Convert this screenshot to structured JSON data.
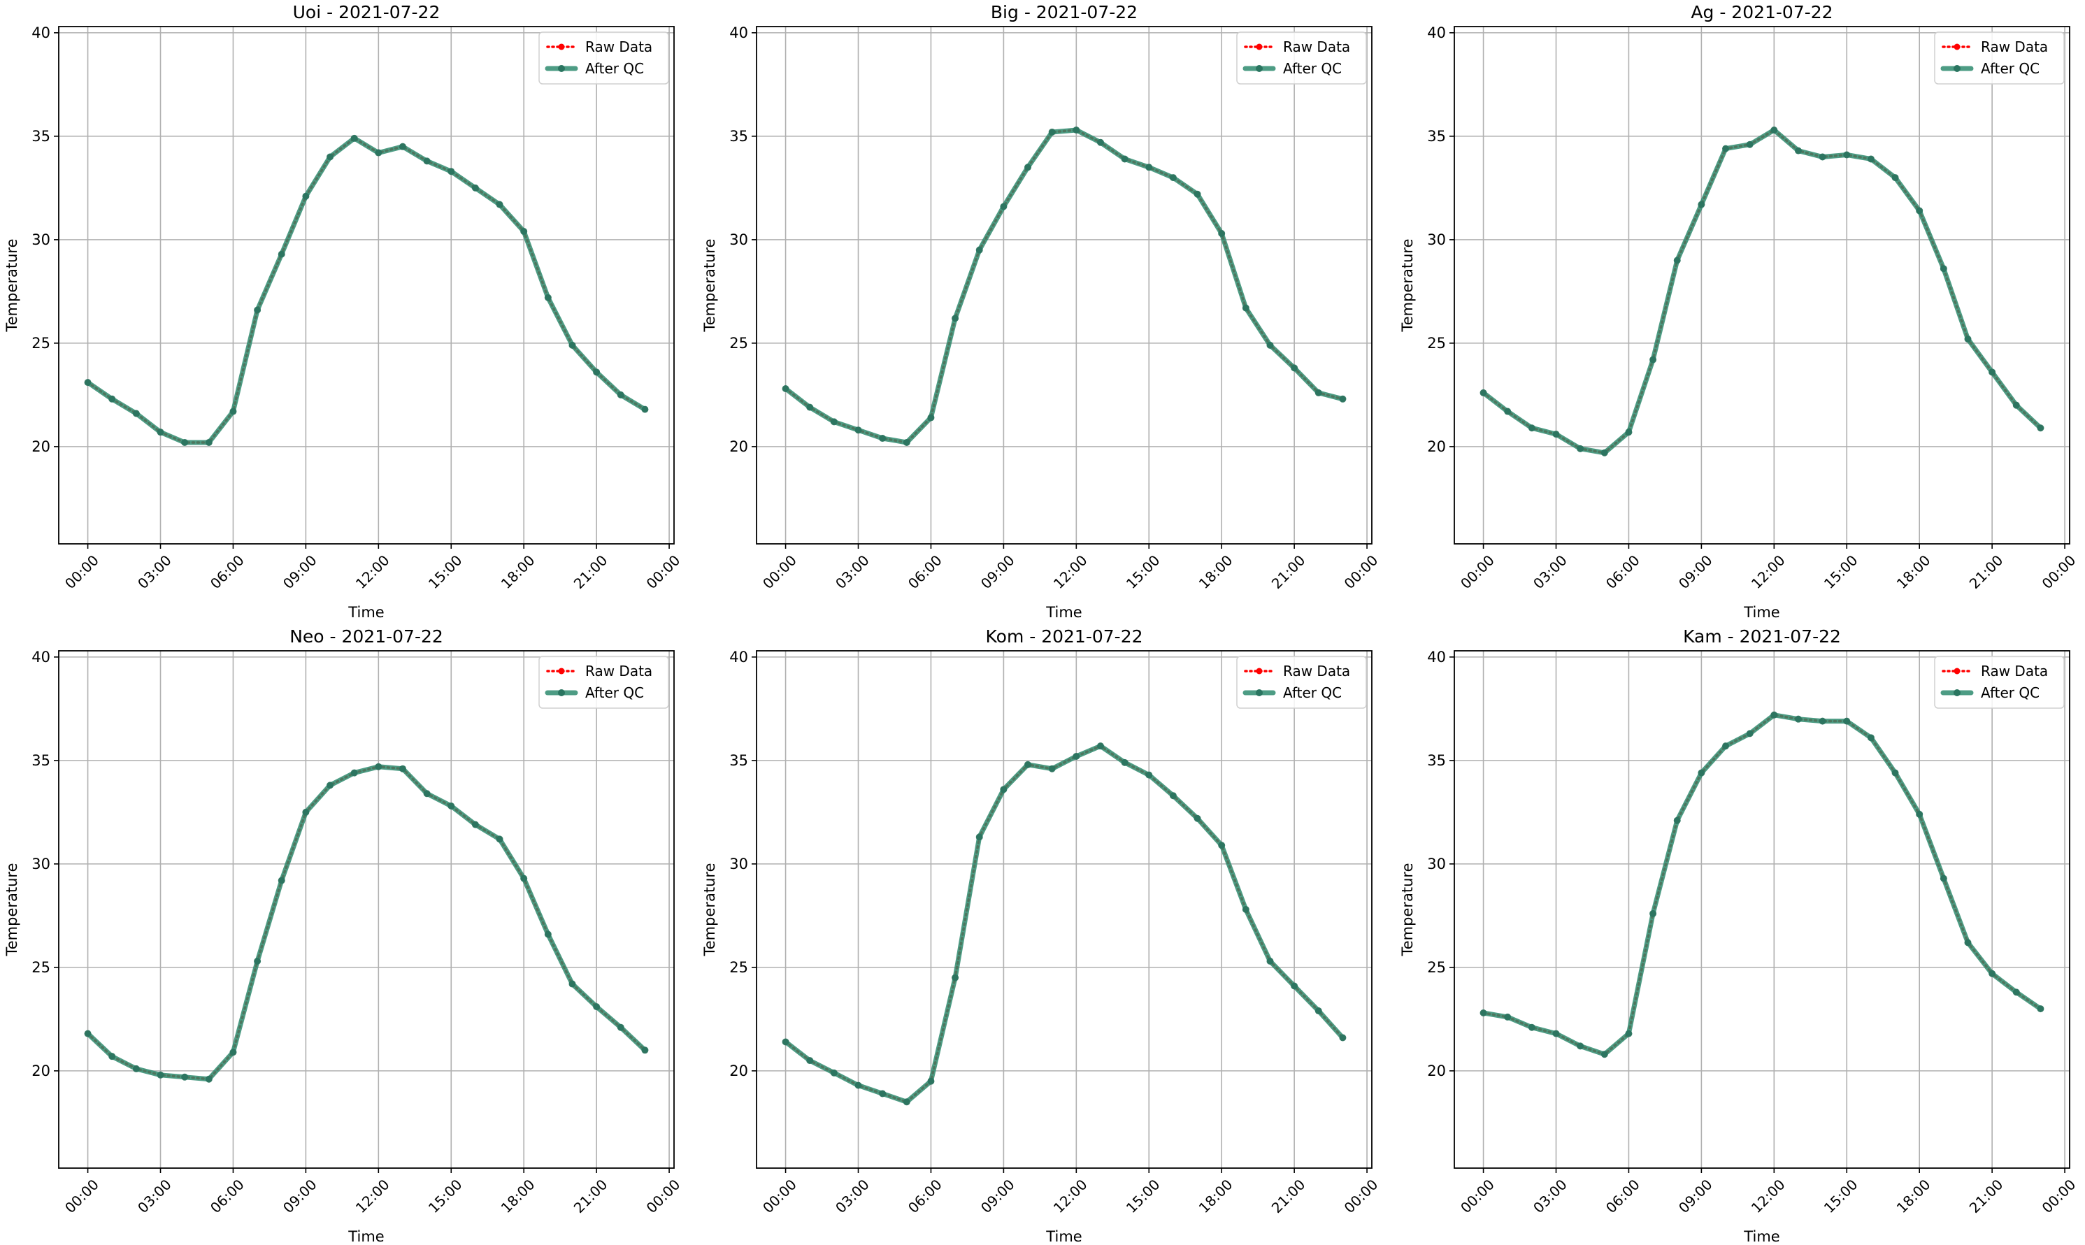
{
  "chart_data": [
    {
      "type": "line",
      "title": "Uoi - 2021-07-22",
      "xlabel": "Time",
      "ylabel": "Temperature",
      "x_unit": "hour",
      "xlim": [
        -1.2,
        24.2
      ],
      "ylim": [
        15.3,
        40.3
      ],
      "xticks": [
        0,
        3,
        6,
        9,
        12,
        15,
        18,
        21,
        24
      ],
      "xtick_labels": [
        "00:00",
        "03:00",
        "06:00",
        "09:00",
        "12:00",
        "15:00",
        "18:00",
        "21:00",
        "00:00"
      ],
      "yticks": [
        20,
        25,
        30,
        35,
        40
      ],
      "grid": true,
      "legend_position": "top-right",
      "x": [
        0,
        1,
        2,
        3,
        4,
        5,
        6,
        7,
        8,
        9,
        10,
        11,
        12,
        13,
        14,
        15,
        16,
        17,
        18,
        19,
        20,
        21,
        22,
        23
      ],
      "series": [
        {
          "name": "Raw Data",
          "color": "#ff0000",
          "style": "dotted",
          "values": [
            23.1,
            22.3,
            21.6,
            20.7,
            20.2,
            20.2,
            21.7,
            26.6,
            29.3,
            32.1,
            34.0,
            34.9,
            34.2,
            34.5,
            33.8,
            33.3,
            32.5,
            31.7,
            30.4,
            27.2,
            24.9,
            23.6,
            22.5,
            21.8
          ]
        },
        {
          "name": "After QC",
          "color": "#2e8b6e",
          "style": "solid",
          "values": [
            23.1,
            22.3,
            21.6,
            20.7,
            20.2,
            20.2,
            21.7,
            26.6,
            29.3,
            32.1,
            34.0,
            34.9,
            34.2,
            34.5,
            33.8,
            33.3,
            32.5,
            31.7,
            30.4,
            27.2,
            24.9,
            23.6,
            22.5,
            21.8
          ]
        }
      ]
    },
    {
      "type": "line",
      "title": "Big - 2021-07-22",
      "xlabel": "Time",
      "ylabel": "Temperature",
      "x_unit": "hour",
      "xlim": [
        -1.2,
        24.2
      ],
      "ylim": [
        15.3,
        40.3
      ],
      "xticks": [
        0,
        3,
        6,
        9,
        12,
        15,
        18,
        21,
        24
      ],
      "xtick_labels": [
        "00:00",
        "03:00",
        "06:00",
        "09:00",
        "12:00",
        "15:00",
        "18:00",
        "21:00",
        "00:00"
      ],
      "yticks": [
        20,
        25,
        30,
        35,
        40
      ],
      "grid": true,
      "legend_position": "top-right",
      "x": [
        0,
        1,
        2,
        3,
        4,
        5,
        6,
        7,
        8,
        9,
        10,
        11,
        12,
        13,
        14,
        15,
        16,
        17,
        18,
        19,
        20,
        21,
        22,
        23
      ],
      "series": [
        {
          "name": "Raw Data",
          "color": "#ff0000",
          "style": "dotted",
          "values": [
            22.8,
            21.9,
            21.2,
            20.8,
            20.4,
            20.2,
            21.4,
            26.2,
            29.5,
            31.6,
            33.5,
            35.2,
            35.3,
            34.7,
            33.9,
            33.5,
            33.0,
            32.2,
            30.3,
            26.7,
            24.9,
            23.8,
            22.6,
            22.3
          ]
        },
        {
          "name": "After QC",
          "color": "#2e8b6e",
          "style": "solid",
          "values": [
            22.8,
            21.9,
            21.2,
            20.8,
            20.4,
            20.2,
            21.4,
            26.2,
            29.5,
            31.6,
            33.5,
            35.2,
            35.3,
            34.7,
            33.9,
            33.5,
            33.0,
            32.2,
            30.3,
            26.7,
            24.9,
            23.8,
            22.6,
            22.3
          ]
        }
      ]
    },
    {
      "type": "line",
      "title": "Ag - 2021-07-22",
      "xlabel": "Time",
      "ylabel": "Temperature",
      "x_unit": "hour",
      "xlim": [
        -1.2,
        24.2
      ],
      "ylim": [
        15.3,
        40.3
      ],
      "xticks": [
        0,
        3,
        6,
        9,
        12,
        15,
        18,
        21,
        24
      ],
      "xtick_labels": [
        "00:00",
        "03:00",
        "06:00",
        "09:00",
        "12:00",
        "15:00",
        "18:00",
        "21:00",
        "00:00"
      ],
      "yticks": [
        20,
        25,
        30,
        35,
        40
      ],
      "grid": true,
      "legend_position": "top-right",
      "x": [
        0,
        1,
        2,
        3,
        4,
        5,
        6,
        7,
        8,
        9,
        10,
        11,
        12,
        13,
        14,
        15,
        16,
        17,
        18,
        19,
        20,
        21,
        22,
        23
      ],
      "series": [
        {
          "name": "Raw Data",
          "color": "#ff0000",
          "style": "dotted",
          "values": [
            22.6,
            21.7,
            20.9,
            20.6,
            19.9,
            19.7,
            20.7,
            24.2,
            29.0,
            31.7,
            34.4,
            34.6,
            35.3,
            34.3,
            34.0,
            34.1,
            33.9,
            33.0,
            31.4,
            28.6,
            25.2,
            23.6,
            22.0,
            20.9
          ]
        },
        {
          "name": "After QC",
          "color": "#2e8b6e",
          "style": "solid",
          "values": [
            22.6,
            21.7,
            20.9,
            20.6,
            19.9,
            19.7,
            20.7,
            24.2,
            29.0,
            31.7,
            34.4,
            34.6,
            35.3,
            34.3,
            34.0,
            34.1,
            33.9,
            33.0,
            31.4,
            28.6,
            25.2,
            23.6,
            22.0,
            20.9
          ]
        }
      ]
    },
    {
      "type": "line",
      "title": "Neo - 2021-07-22",
      "xlabel": "Time",
      "ylabel": "Temperature",
      "x_unit": "hour",
      "xlim": [
        -1.2,
        24.2
      ],
      "ylim": [
        15.3,
        40.3
      ],
      "xticks": [
        0,
        3,
        6,
        9,
        12,
        15,
        18,
        21,
        24
      ],
      "xtick_labels": [
        "00:00",
        "03:00",
        "06:00",
        "09:00",
        "12:00",
        "15:00",
        "18:00",
        "21:00",
        "00:00"
      ],
      "yticks": [
        20,
        25,
        30,
        35,
        40
      ],
      "grid": true,
      "legend_position": "top-right",
      "x": [
        0,
        1,
        2,
        3,
        4,
        5,
        6,
        7,
        8,
        9,
        10,
        11,
        12,
        13,
        14,
        15,
        16,
        17,
        18,
        19,
        20,
        21,
        22,
        23
      ],
      "series": [
        {
          "name": "Raw Data",
          "color": "#ff0000",
          "style": "dotted",
          "values": [
            21.8,
            20.7,
            20.1,
            19.8,
            19.7,
            19.6,
            20.9,
            25.3,
            29.2,
            32.5,
            33.8,
            34.4,
            34.7,
            34.6,
            33.4,
            32.8,
            31.9,
            31.2,
            29.3,
            26.6,
            24.2,
            23.1,
            22.1,
            21.0
          ]
        },
        {
          "name": "After QC",
          "color": "#2e8b6e",
          "style": "solid",
          "values": [
            21.8,
            20.7,
            20.1,
            19.8,
            19.7,
            19.6,
            20.9,
            25.3,
            29.2,
            32.5,
            33.8,
            34.4,
            34.7,
            34.6,
            33.4,
            32.8,
            31.9,
            31.2,
            29.3,
            26.6,
            24.2,
            23.1,
            22.1,
            21.0
          ]
        }
      ]
    },
    {
      "type": "line",
      "title": "Kom - 2021-07-22",
      "xlabel": "Time",
      "ylabel": "Temperature",
      "x_unit": "hour",
      "xlim": [
        -1.2,
        24.2
      ],
      "ylim": [
        15.3,
        40.3
      ],
      "xticks": [
        0,
        3,
        6,
        9,
        12,
        15,
        18,
        21,
        24
      ],
      "xtick_labels": [
        "00:00",
        "03:00",
        "06:00",
        "09:00",
        "12:00",
        "15:00",
        "18:00",
        "21:00",
        "00:00"
      ],
      "yticks": [
        20,
        25,
        30,
        35,
        40
      ],
      "grid": true,
      "legend_position": "top-right",
      "x": [
        0,
        1,
        2,
        3,
        4,
        5,
        6,
        7,
        8,
        9,
        10,
        11,
        12,
        13,
        14,
        15,
        16,
        17,
        18,
        19,
        20,
        21,
        22,
        23
      ],
      "series": [
        {
          "name": "Raw Data",
          "color": "#ff0000",
          "style": "dotted",
          "values": [
            21.4,
            20.5,
            19.9,
            19.3,
            18.9,
            18.5,
            19.5,
            24.5,
            31.3,
            33.6,
            34.8,
            34.6,
            35.2,
            35.7,
            34.9,
            34.3,
            33.3,
            32.2,
            30.9,
            27.8,
            25.3,
            24.1,
            22.9,
            21.6
          ]
        },
        {
          "name": "After QC",
          "color": "#2e8b6e",
          "style": "solid",
          "values": [
            21.4,
            20.5,
            19.9,
            19.3,
            18.9,
            18.5,
            19.5,
            24.5,
            31.3,
            33.6,
            34.8,
            34.6,
            35.2,
            35.7,
            34.9,
            34.3,
            33.3,
            32.2,
            30.9,
            27.8,
            25.3,
            24.1,
            22.9,
            21.6
          ]
        }
      ]
    },
    {
      "type": "line",
      "title": "Kam - 2021-07-22",
      "xlabel": "Time",
      "ylabel": "Temperature",
      "x_unit": "hour",
      "xlim": [
        -1.2,
        24.2
      ],
      "ylim": [
        15.3,
        40.3
      ],
      "xticks": [
        0,
        3,
        6,
        9,
        12,
        15,
        18,
        21,
        24
      ],
      "xtick_labels": [
        "00:00",
        "03:00",
        "06:00",
        "09:00",
        "12:00",
        "15:00",
        "18:00",
        "21:00",
        "00:00"
      ],
      "yticks": [
        20,
        25,
        30,
        35,
        40
      ],
      "grid": true,
      "legend_position": "top-right",
      "x": [
        0,
        1,
        2,
        3,
        4,
        5,
        6,
        7,
        8,
        9,
        10,
        11,
        12,
        13,
        14,
        15,
        16,
        17,
        18,
        19,
        20,
        21,
        22,
        23
      ],
      "series": [
        {
          "name": "Raw Data",
          "color": "#ff0000",
          "style": "dotted",
          "values": [
            22.8,
            22.6,
            22.1,
            21.8,
            21.2,
            20.8,
            21.8,
            27.6,
            32.1,
            34.4,
            35.7,
            36.3,
            37.2,
            37.0,
            36.9,
            36.9,
            36.1,
            34.4,
            32.4,
            29.3,
            26.2,
            24.7,
            23.8,
            23.0
          ]
        },
        {
          "name": "After QC",
          "color": "#2e8b6e",
          "style": "solid",
          "values": [
            22.8,
            22.6,
            22.1,
            21.8,
            21.2,
            20.8,
            21.8,
            27.6,
            32.1,
            34.4,
            35.7,
            36.3,
            37.2,
            37.0,
            36.9,
            36.9,
            36.1,
            34.4,
            32.4,
            29.3,
            26.2,
            24.7,
            23.8,
            23.0
          ]
        }
      ]
    }
  ]
}
